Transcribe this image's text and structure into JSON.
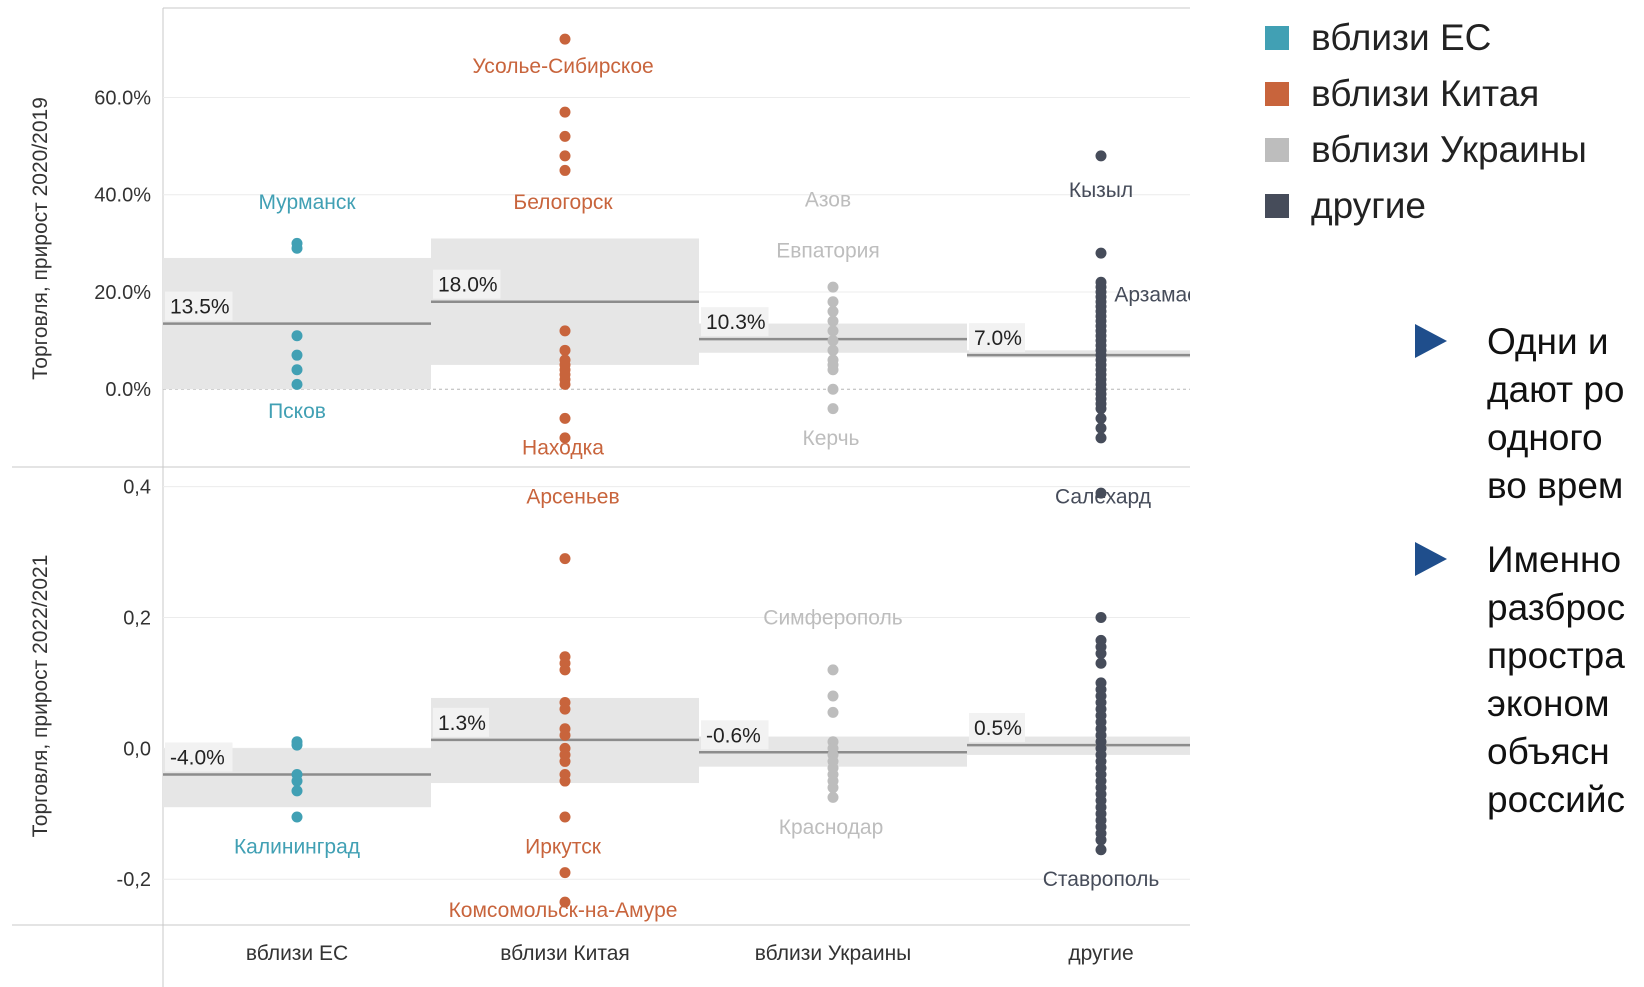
{
  "legend": [
    {
      "label": "вблизи ЕС",
      "color": "#41a0b4"
    },
    {
      "label": "вблизи Китая",
      "color": "#c8643c"
    },
    {
      "label": "вблизи Украины",
      "color": "#bdbdbd"
    },
    {
      "label": "другие",
      "color": "#464c5a"
    }
  ],
  "bullets": [
    {
      "lines": [
        "Одни и",
        "дают ро",
        "одного",
        "во врем"
      ]
    },
    {
      "lines": [
        "Именно",
        "разброс",
        "простра",
        "эконом",
        "объясн",
        "российс"
      ]
    }
  ],
  "chart_data": {
    "type": "strip",
    "categories": [
      "вблизи ЕС",
      "вблизи Китая",
      "вблизи Украины",
      "другие"
    ],
    "colors": [
      "#41a0b4",
      "#c8643c",
      "#bdbdbd",
      "#464c5a"
    ],
    "panels": [
      {
        "ylabel": "Торговля, прирост 2020/2019",
        "ylim": [
          -0.16,
          0.78
        ],
        "yticks": [
          0,
          0.2,
          0.4,
          0.6
        ],
        "tick_labels": [
          "0.0%",
          "20.0%",
          "40.0%",
          "60.0%"
        ],
        "medians": [
          {
            "value": 0.135,
            "label": "13.5%"
          },
          {
            "value": 0.18,
            "label": "18.0%"
          },
          {
            "value": 0.103,
            "label": "10.3%"
          },
          {
            "value": 0.07,
            "label": "7.0%"
          }
        ],
        "bands": [
          [
            0.0,
            0.27
          ],
          [
            0.05,
            0.31
          ],
          [
            0.075,
            0.135
          ],
          [
            0.065,
            0.08
          ]
        ],
        "points": [
          [
            0.3,
            0.29,
            0.11,
            0.07,
            0.04,
            0.01
          ],
          [
            0.72,
            0.57,
            0.52,
            0.48,
            0.45,
            0.12,
            0.08,
            0.06,
            0.05,
            0.04,
            0.03,
            0.02,
            0.01,
            -0.06,
            -0.1
          ],
          [
            0.21,
            0.18,
            0.16,
            0.14,
            0.12,
            0.1,
            0.08,
            0.06,
            0.05,
            0.04,
            0.0,
            -0.04
          ],
          [
            0.48,
            0.28,
            0.22,
            0.21,
            0.2,
            0.19,
            0.18,
            0.17,
            0.16,
            0.15,
            0.14,
            0.13,
            0.12,
            0.11,
            0.1,
            0.09,
            0.08,
            0.07,
            0.06,
            0.05,
            0.04,
            0.03,
            0.02,
            0.01,
            0.0,
            -0.01,
            -0.02,
            -0.03,
            -0.04,
            -0.06,
            -0.08,
            -0.1
          ]
        ],
        "annotations": [
          {
            "cat": 0,
            "text": "Мурманск",
            "value": 0.385,
            "dx": 10
          },
          {
            "cat": 0,
            "text": "Псков",
            "value": -0.045,
            "dx": 0
          },
          {
            "cat": 1,
            "text": "Усолье-Сибирское",
            "value": 0.665,
            "dx": -2
          },
          {
            "cat": 1,
            "text": "Белогорск",
            "value": 0.385,
            "dx": -2
          },
          {
            "cat": 1,
            "text": "Находка",
            "value": -0.12,
            "dx": -2
          },
          {
            "cat": 2,
            "text": "Азов",
            "value": 0.39,
            "dx": -5
          },
          {
            "cat": 2,
            "text": "Евпатория",
            "value": 0.285,
            "dx": -5
          },
          {
            "cat": 2,
            "text": "Керчь",
            "value": -0.1,
            "dx": -2
          },
          {
            "cat": 3,
            "text": "Кызыл",
            "value": 0.41,
            "dx": 0
          },
          {
            "cat": 3,
            "text": "Арзамас",
            "value": 0.195,
            "dx": 55
          }
        ]
      },
      {
        "ylabel": "Торговля, прирост 2022/2021",
        "ylim": [
          -0.27,
          0.43
        ],
        "yticks": [
          -0.2,
          0,
          0.2,
          0.4
        ],
        "tick_labels": [
          "-0,2",
          "0,0",
          "0,2",
          "0,4"
        ],
        "medians": [
          {
            "value": -0.04,
            "label": "-4.0%"
          },
          {
            "value": 0.013,
            "label": "1.3%"
          },
          {
            "value": -0.006,
            "label": "-0.6%"
          },
          {
            "value": 0.005,
            "label": "0.5%"
          }
        ],
        "bands": [
          [
            -0.09,
            0.0
          ],
          [
            -0.053,
            0.077
          ],
          [
            -0.028,
            0.018
          ],
          [
            -0.01,
            0.018
          ]
        ],
        "points": [
          [
            0.01,
            0.005,
            -0.04,
            -0.05,
            -0.065,
            -0.105
          ],
          [
            0.29,
            0.14,
            0.13,
            0.12,
            0.07,
            0.06,
            0.03,
            0.02,
            0.0,
            -0.01,
            -0.02,
            -0.04,
            -0.05,
            -0.105,
            -0.19,
            -0.235
          ],
          [
            0.12,
            0.08,
            0.055,
            0.01,
            0.0,
            -0.01,
            -0.02,
            -0.03,
            -0.04,
            -0.05,
            -0.06,
            -0.075
          ],
          [
            0.39,
            0.2,
            0.165,
            0.155,
            0.145,
            0.13,
            0.1,
            0.09,
            0.08,
            0.07,
            0.06,
            0.05,
            0.04,
            0.03,
            0.02,
            0.01,
            0.0,
            -0.01,
            -0.02,
            -0.03,
            -0.04,
            -0.05,
            -0.06,
            -0.07,
            -0.08,
            -0.09,
            -0.1,
            -0.11,
            -0.12,
            -0.13,
            -0.14,
            -0.155
          ]
        ],
        "annotations": [
          {
            "cat": 0,
            "text": "Калининград",
            "value": -0.15,
            "dx": 0
          },
          {
            "cat": 1,
            "text": "Арсеньев",
            "value": 0.385,
            "dx": 8
          },
          {
            "cat": 1,
            "text": "Иркутск",
            "value": -0.15,
            "dx": -2
          },
          {
            "cat": 1,
            "text": "Комсомольск-на-Амуре",
            "value": -0.247,
            "dx": -2
          },
          {
            "cat": 2,
            "text": "Симферополь",
            "value": 0.2,
            "dx": 0
          },
          {
            "cat": 2,
            "text": "Краснодар",
            "value": -0.12,
            "dx": -2
          },
          {
            "cat": 3,
            "text": "Салехард",
            "value": 0.385,
            "dx": 2
          },
          {
            "cat": 3,
            "text": "Ставрополь",
            "value": -0.2,
            "dx": 0
          }
        ]
      }
    ]
  }
}
